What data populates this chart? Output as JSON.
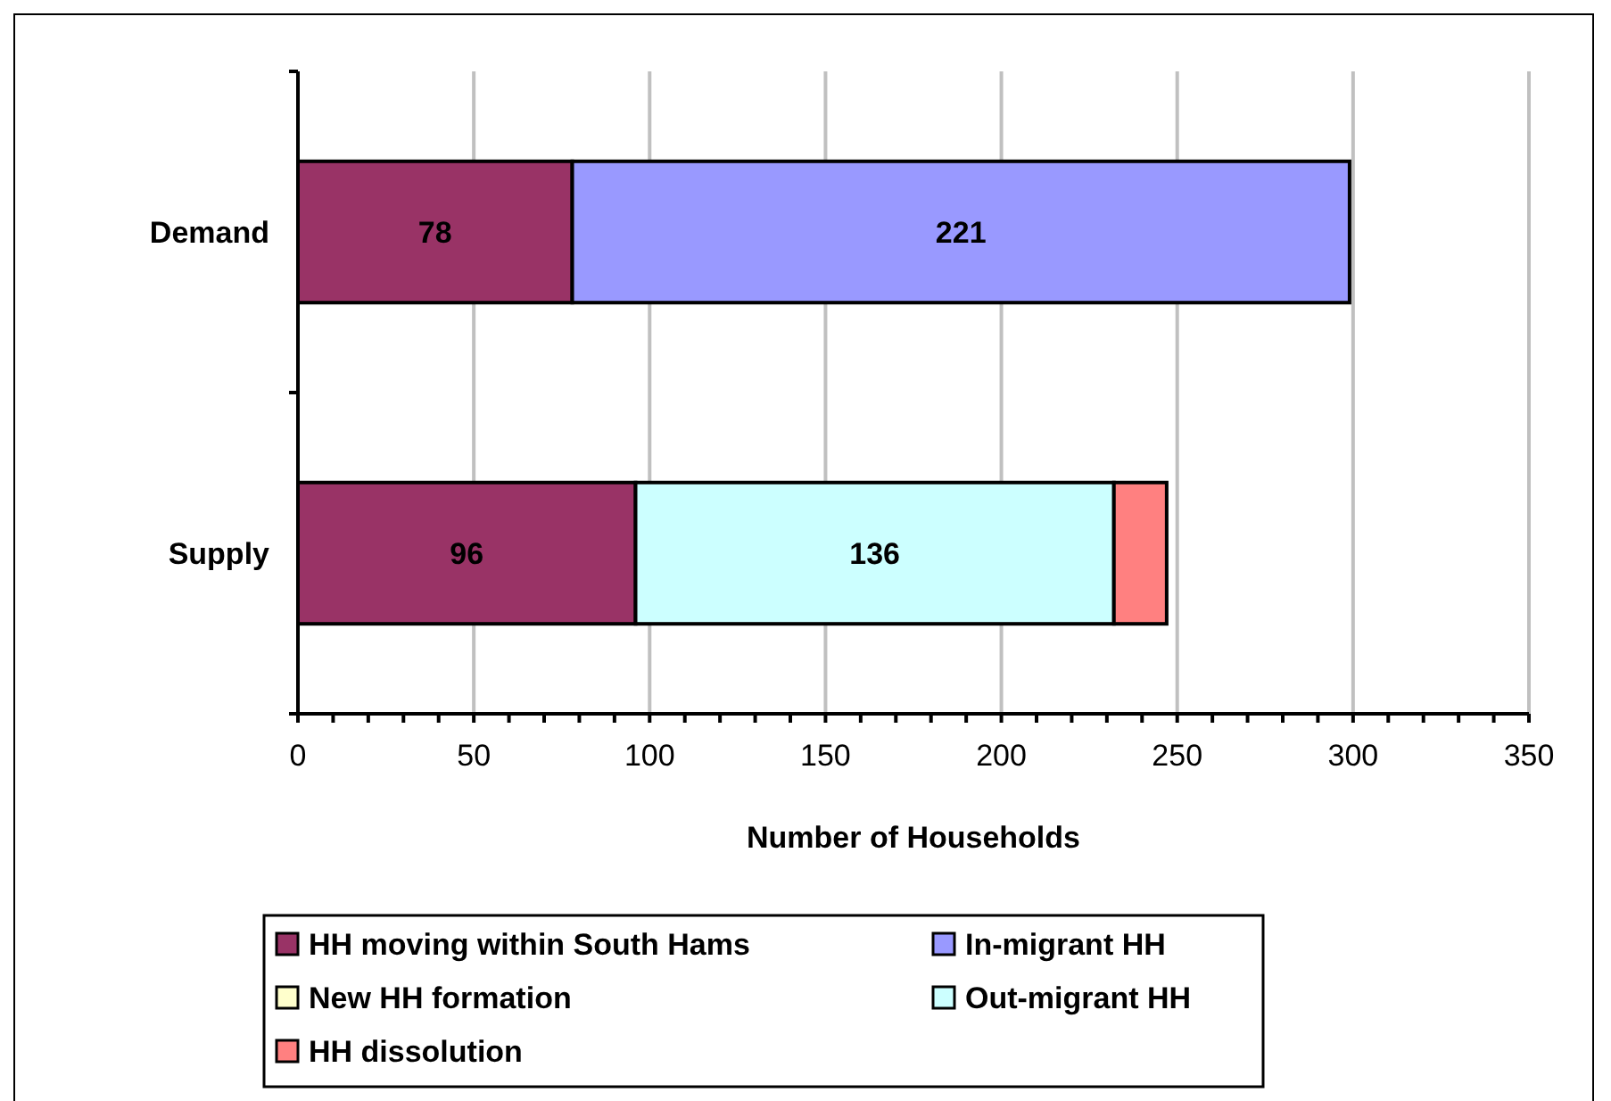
{
  "chart_data": {
    "type": "bar",
    "orientation": "horizontal",
    "stacked": true,
    "xlabel": "Number of Households",
    "categories": [
      "Demand",
      "Supply"
    ],
    "series": [
      {
        "name": "HH moving within South Hams",
        "color": "#993366",
        "values": [
          78,
          96
        ],
        "value_labels": [
          "78",
          "96"
        ]
      },
      {
        "name": "In-migrant HH",
        "color": "#9999ff",
        "values": [
          221,
          null
        ],
        "value_labels": [
          "221",
          null
        ]
      },
      {
        "name": "New HH formation",
        "color": "#ffffcc",
        "values": [
          null,
          null
        ]
      },
      {
        "name": "Out-migrant HH",
        "color": "#ccffff",
        "values": [
          null,
          136
        ],
        "value_labels": [
          null,
          "136"
        ]
      },
      {
        "name": "HH dissolution",
        "color": "#ff8080",
        "values": [
          null,
          15
        ],
        "value_labels": [
          null,
          null
        ]
      }
    ],
    "xlim": [
      0,
      350
    ],
    "xticks": [
      0,
      {
        "value": 10,
        "label": null
      },
      {
        "value": 20,
        "label": null
      },
      {
        "value": 30,
        "label": null
      },
      {
        "value": 40,
        "label": null
      },
      50,
      {
        "value": 60,
        "label": null
      },
      {
        "value": 70,
        "label": null
      },
      {
        "value": 80,
        "label": null
      },
      {
        "value": 90,
        "label": null
      },
      100,
      {
        "value": 110,
        "label": null
      },
      {
        "value": 120,
        "label": null
      },
      {
        "value": 130,
        "label": null
      },
      {
        "value": 140,
        "label": null
      },
      150,
      {
        "value": 160,
        "label": null
      },
      {
        "value": 170,
        "label": null
      },
      {
        "value": 180,
        "label": null
      },
      {
        "value": 190,
        "label": null
      },
      200,
      {
        "value": 210,
        "label": null
      },
      {
        "value": 220,
        "label": null
      },
      {
        "value": 230,
        "label": null
      },
      {
        "value": 240,
        "label": null
      },
      250,
      {
        "value": 260,
        "label": null
      },
      {
        "value": 270,
        "label": null
      },
      {
        "value": 280,
        "label": null
      },
      {
        "value": 290,
        "label": null
      },
      300,
      {
        "value": 310,
        "label": null
      },
      {
        "value": 320,
        "label": null
      },
      {
        "value": 330,
        "label": null
      },
      {
        "value": 340,
        "label": null
      },
      350
    ],
    "grid": "x",
    "legend": "bottom"
  }
}
